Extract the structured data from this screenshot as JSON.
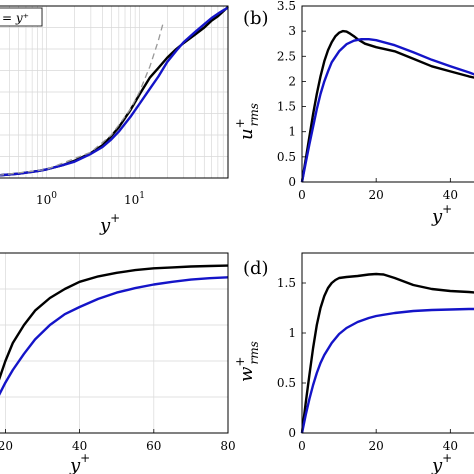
{
  "colors": {
    "black_series": "#000000",
    "blue_series": "#1414c8",
    "reference_line": "#999999",
    "grid": "#d9d9d9"
  },
  "chart_data": [
    {
      "panel": "a",
      "type": "line",
      "x_scale": "log",
      "xlim": [
        0.3,
        90
      ],
      "ylim": [
        0,
        20
      ],
      "xticklabels": [
        "10^0",
        "10^1"
      ],
      "xlabel": {
        "base": "y",
        "sup": "+"
      },
      "legend_text": "= y⁺",
      "series": [
        {
          "x": [
            0.3,
            0.5,
            0.8,
            1,
            1.5,
            2,
            3,
            4,
            5,
            6,
            8,
            10,
            13,
            16,
            20,
            25,
            30,
            40,
            50,
            60,
            70,
            80,
            90
          ],
          "y": [
            0.3,
            0.5,
            0.8,
            1.0,
            1.5,
            2.0,
            2.9,
            3.8,
            4.9,
            5.9,
            7.9,
            9.7,
            11.7,
            12.8,
            14.0,
            15.0,
            15.7,
            16.7,
            17.5,
            18.3,
            18.8,
            19.4,
            19.9
          ]
        },
        {
          "x": [
            0.3,
            0.5,
            0.8,
            1,
            1.5,
            2,
            3,
            4,
            5,
            6,
            8,
            10,
            13,
            16,
            20,
            25,
            30,
            40,
            50,
            60,
            70,
            80,
            90
          ],
          "y": [
            0.3,
            0.5,
            0.8,
            1.0,
            1.5,
            1.9,
            2.8,
            3.6,
            4.5,
            5.4,
            7.1,
            8.6,
            10.4,
            11.8,
            13.5,
            14.8,
            15.8,
            17.0,
            17.9,
            18.6,
            19.1,
            19.5,
            19.8
          ]
        },
        {
          "x": [
            0.3,
            1,
            3,
            5,
            8,
            10,
            13,
            16,
            18
          ],
          "y": [
            0.3,
            1.0,
            3.0,
            5.0,
            8.0,
            10.0,
            13.0,
            16.0,
            18.0
          ]
        }
      ]
    },
    {
      "panel": "b",
      "type": "line",
      "xlim": [
        0,
        48
      ],
      "ylim": [
        0,
        3.5
      ],
      "xticks": [
        0,
        20,
        40
      ],
      "yticks": [
        0,
        0.5,
        1,
        1.5,
        2,
        2.5,
        3,
        3.5
      ],
      "yticklabels": [
        "0",
        "0.5",
        "1",
        "1.5",
        "2",
        "2.5",
        "3",
        "3.5"
      ],
      "panel_label": "(b)",
      "xlabel": {
        "base": "y",
        "sup": "+"
      },
      "ylabel": {
        "base": "u",
        "sup": "+",
        "sub": "rms"
      },
      "series": [
        {
          "x": [
            0,
            1,
            2,
            3,
            4,
            5,
            6,
            7,
            8,
            9,
            10,
            11,
            12,
            13,
            14,
            15,
            17,
            20,
            25,
            30,
            35,
            40,
            45,
            48
          ],
          "y": [
            0,
            0.45,
            0.9,
            1.35,
            1.75,
            2.1,
            2.4,
            2.62,
            2.78,
            2.9,
            2.97,
            3.0,
            2.99,
            2.95,
            2.9,
            2.84,
            2.75,
            2.68,
            2.6,
            2.45,
            2.3,
            2.2,
            2.1,
            2.05
          ]
        },
        {
          "x": [
            0,
            1,
            2,
            3,
            4,
            5,
            6,
            7,
            8,
            10,
            12,
            14,
            16,
            18,
            20,
            25,
            30,
            35,
            40,
            45,
            48
          ],
          "y": [
            0,
            0.38,
            0.75,
            1.1,
            1.45,
            1.75,
            2.0,
            2.2,
            2.38,
            2.6,
            2.74,
            2.81,
            2.84,
            2.84,
            2.82,
            2.72,
            2.58,
            2.43,
            2.3,
            2.18,
            2.1
          ]
        }
      ]
    },
    {
      "panel": "c",
      "type": "line",
      "xlim": [
        18,
        80
      ],
      "ylim": [
        0,
        1
      ],
      "xticks": [
        20,
        40,
        60,
        80
      ],
      "xlabel": {
        "base": "y",
        "sup": "+"
      },
      "series": [
        {
          "x": [
            18,
            20,
            22,
            25,
            28,
            32,
            36,
            40,
            45,
            50,
            55,
            60,
            65,
            70,
            75,
            80
          ],
          "y": [
            0.28,
            0.4,
            0.5,
            0.6,
            0.68,
            0.75,
            0.8,
            0.84,
            0.87,
            0.89,
            0.905,
            0.915,
            0.92,
            0.925,
            0.928,
            0.93
          ]
        },
        {
          "x": [
            18,
            20,
            22,
            25,
            28,
            32,
            36,
            40,
            45,
            50,
            55,
            60,
            65,
            70,
            75,
            80
          ],
          "y": [
            0.2,
            0.28,
            0.35,
            0.44,
            0.52,
            0.6,
            0.66,
            0.7,
            0.745,
            0.78,
            0.805,
            0.825,
            0.84,
            0.852,
            0.86,
            0.865
          ]
        }
      ]
    },
    {
      "panel": "d",
      "type": "line",
      "xlim": [
        0,
        48
      ],
      "ylim": [
        0,
        1.8
      ],
      "xticks": [
        0,
        20,
        40
      ],
      "yticks": [
        0,
        0.5,
        1,
        1.5
      ],
      "yticklabels": [
        "0",
        "0.5",
        "1",
        "1.5"
      ],
      "panel_label": "(d)",
      "xlabel": {
        "base": "y",
        "sup": "+"
      },
      "ylabel": {
        "base": "w",
        "sup": "+",
        "sub": "rms"
      },
      "series": [
        {
          "x": [
            0,
            1,
            2,
            3,
            4,
            5,
            6,
            7,
            8,
            9,
            10,
            12,
            15,
            18,
            20,
            22,
            25,
            30,
            35,
            40,
            45,
            48
          ],
          "y": [
            0,
            0.3,
            0.58,
            0.85,
            1.08,
            1.25,
            1.37,
            1.45,
            1.5,
            1.53,
            1.55,
            1.56,
            1.57,
            1.585,
            1.59,
            1.585,
            1.55,
            1.48,
            1.44,
            1.42,
            1.41,
            1.4
          ]
        },
        {
          "x": [
            0,
            1,
            2,
            3,
            4,
            5,
            6,
            8,
            10,
            12,
            15,
            18,
            20,
            25,
            30,
            35,
            40,
            45,
            48
          ],
          "y": [
            0,
            0.18,
            0.34,
            0.48,
            0.6,
            0.7,
            0.78,
            0.9,
            0.99,
            1.05,
            1.11,
            1.15,
            1.17,
            1.2,
            1.22,
            1.23,
            1.235,
            1.24,
            1.24
          ]
        }
      ]
    }
  ]
}
